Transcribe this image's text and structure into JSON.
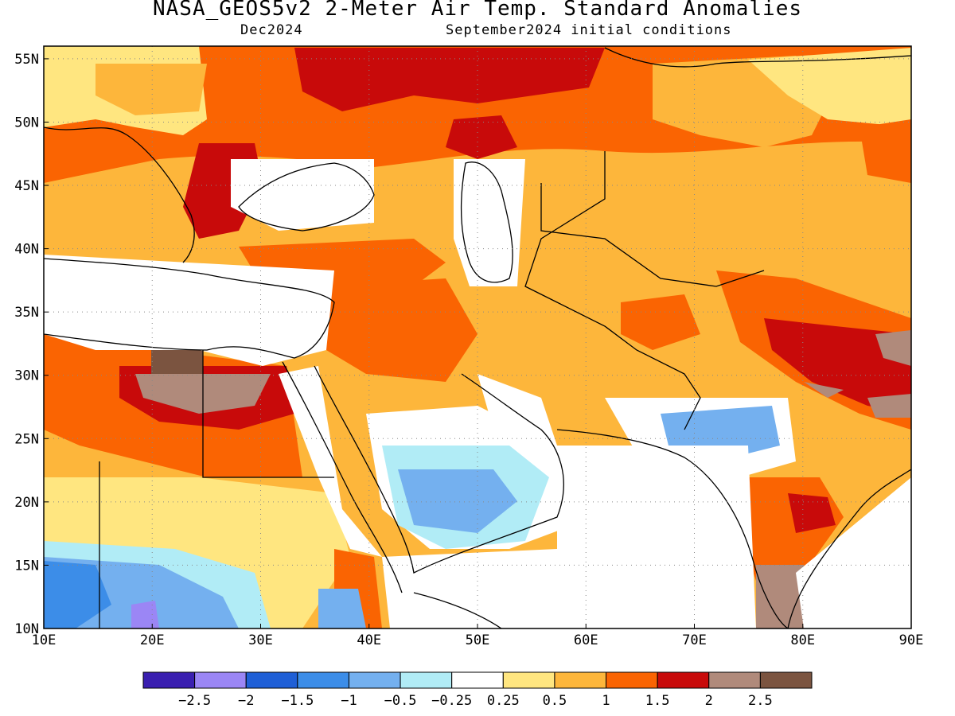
{
  "title": "NASA_GEOS5v2 2-Meter Air Temp. Standard Anomalies",
  "valid_month": "Dec2024",
  "init": "September2024 initial conditions",
  "axes": {
    "lon_ticks": [
      "10E",
      "20E",
      "30E",
      "40E",
      "50E",
      "60E",
      "70E",
      "80E",
      "90E"
    ],
    "lat_ticks": [
      "10N",
      "15N",
      "20N",
      "25N",
      "30N",
      "35N",
      "40N",
      "45N",
      "50N",
      "55N"
    ]
  },
  "legend": {
    "colors": [
      "#3a1fb0",
      "#9b86f5",
      "#1f5fd6",
      "#3c8de8",
      "#74b0ef",
      "#b1ecf6",
      "#ffffff",
      "#ffe680",
      "#fdb63b",
      "#fa6402",
      "#c80a0a",
      "#b08a7b",
      "#7b5440"
    ],
    "labels": [
      "-2.5",
      "-2",
      "-1.5",
      "-1",
      "-0.5",
      "-0.25",
      "0.25",
      "0.5",
      "1",
      "1.5",
      "2",
      "2.5"
    ]
  },
  "chart_data": {
    "type": "heatmap",
    "title": "NASA_GEOS5v2 2-Meter Air Temp. Standard Anomalies",
    "variable": "2-Meter Air Temp. Standard Anomalies",
    "x_range": [
      10,
      90
    ],
    "y_range": [
      10,
      56
    ],
    "x_ticks": [
      "10E",
      "20E",
      "30E",
      "40E",
      "50E",
      "60E",
      "70E",
      "80E",
      "90E"
    ],
    "y_ticks": [
      "10N",
      "15N",
      "20N",
      "25N",
      "30N",
      "35N",
      "40N",
      "45N",
      "50N",
      "55N"
    ],
    "grid": true,
    "colorbar_levels": [
      -2.5,
      -2,
      -1.5,
      -1,
      -0.5,
      -0.25,
      0.25,
      0.5,
      1,
      1.5,
      2,
      2.5
    ]
  }
}
